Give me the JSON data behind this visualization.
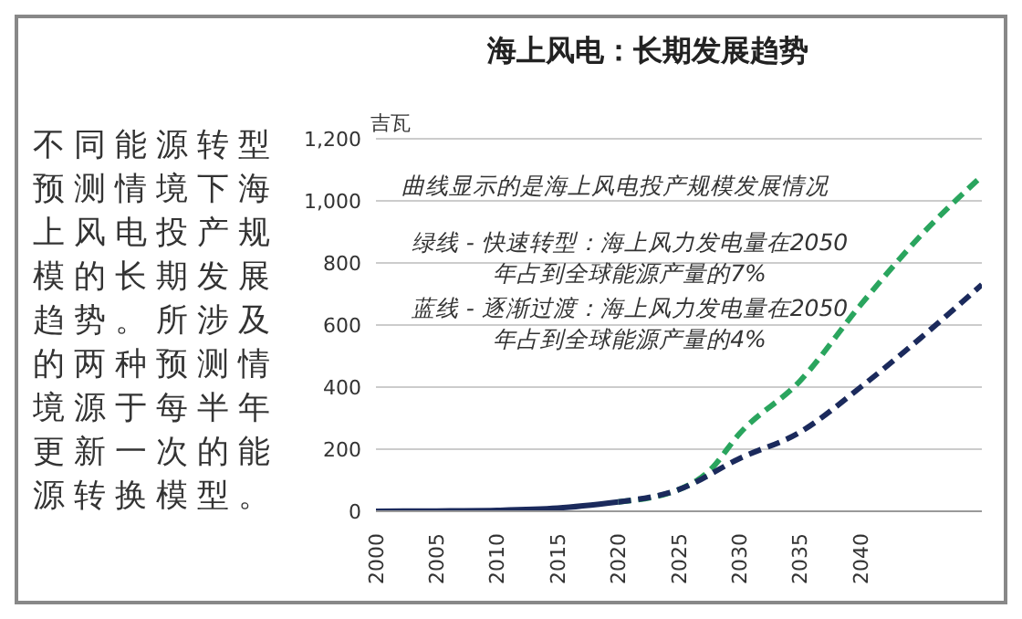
{
  "chart_data": {
    "type": "line",
    "title": "海上风电：长期发展趋势",
    "ylabel": "吉瓦",
    "annotations": [
      "不同能源转型预测情境下海上风电投产规模的长期发展趋势。所涉及的两种预测情境源于每半年更新一次的能源转换模型。",
      "曲线显示的是海上风电投产规模发展情况",
      "绿线 - 快速转型：海上风力发电量在2050年占到全球能源产量的7%",
      "蓝线 - 逐渐过渡：海上风力发电量在2050年占到全球能源产量的4%"
    ],
    "series": [
      {
        "color": "#1b2a5c",
        "line_style": "solid",
        "x": [
          2000,
          2005,
          2010,
          2015,
          2020
        ],
        "values": [
          0,
          1,
          3,
          10,
          30
        ]
      },
      {
        "color": "#2aa55e",
        "line_style": "dashed",
        "x": [
          2020,
          2025,
          2027.5,
          2030,
          2035,
          2040,
          2045,
          2050
        ],
        "values": [
          30,
          70,
          130,
          250,
          420,
          665,
          890,
          1080
        ]
      },
      {
        "color": "#1b2a5c",
        "line_style": "dashed",
        "x": [
          2020,
          2025,
          2030,
          2035,
          2040,
          2045,
          2050
        ],
        "values": [
          30,
          70,
          170,
          255,
          400,
          560,
          730
        ]
      }
    ],
    "xlim": [
      2000,
      2050
    ],
    "xticks": [
      2000,
      2005,
      2010,
      2015,
      2020,
      2025,
      2030,
      2035,
      2040
    ],
    "ylim": [
      0,
      1200
    ],
    "yticks": [
      0,
      200,
      400,
      600,
      800,
      {
        "value": 1000,
        "label": "1,000"
      },
      {
        "value": 1200,
        "label": "1,200"
      }
    ],
    "grid": "y",
    "legend": false,
    "marker": "none"
  }
}
